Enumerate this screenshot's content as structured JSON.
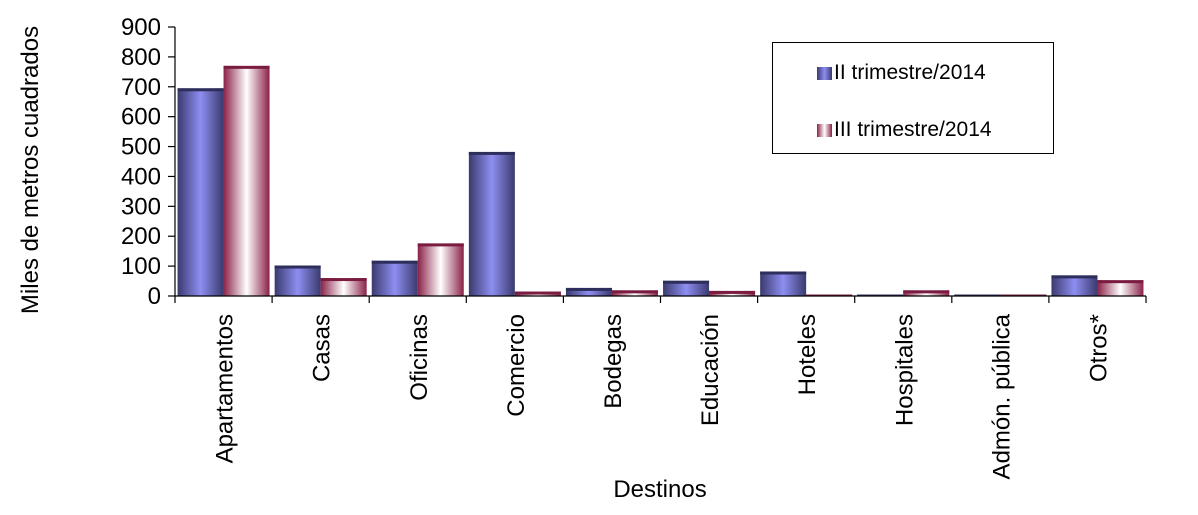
{
  "chart_data": {
    "type": "bar",
    "xlabel": "Destinos",
    "ylabel": "Miles de metros cuadrados",
    "ylim": [
      0,
      900
    ],
    "yticks": [
      0,
      100,
      200,
      300,
      400,
      500,
      600,
      700,
      800,
      900
    ],
    "categories": [
      "Apartamentos",
      "Casas",
      "Oficinas",
      "Comercio",
      "Bodegas",
      "Educación",
      "Hoteles",
      "Hospitales",
      "Admón. pública",
      "Otros*"
    ],
    "series": [
      {
        "name": "II trimestre/2014",
        "values": [
          695,
          102,
          118,
          482,
          27,
          51,
          82,
          2,
          3,
          69
        ]
      },
      {
        "name": "III trimestre/2014",
        "values": [
          770,
          60,
          176,
          15,
          19,
          17,
          2,
          19,
          5,
          53
        ]
      }
    ],
    "grid": false,
    "legend_position": "top-right",
    "colors": {
      "series0_dark": "#3a3a6e",
      "series0_light": "#8e8ef2",
      "series1_dark": "#8a2148",
      "series1_light": "#ffffff"
    }
  }
}
